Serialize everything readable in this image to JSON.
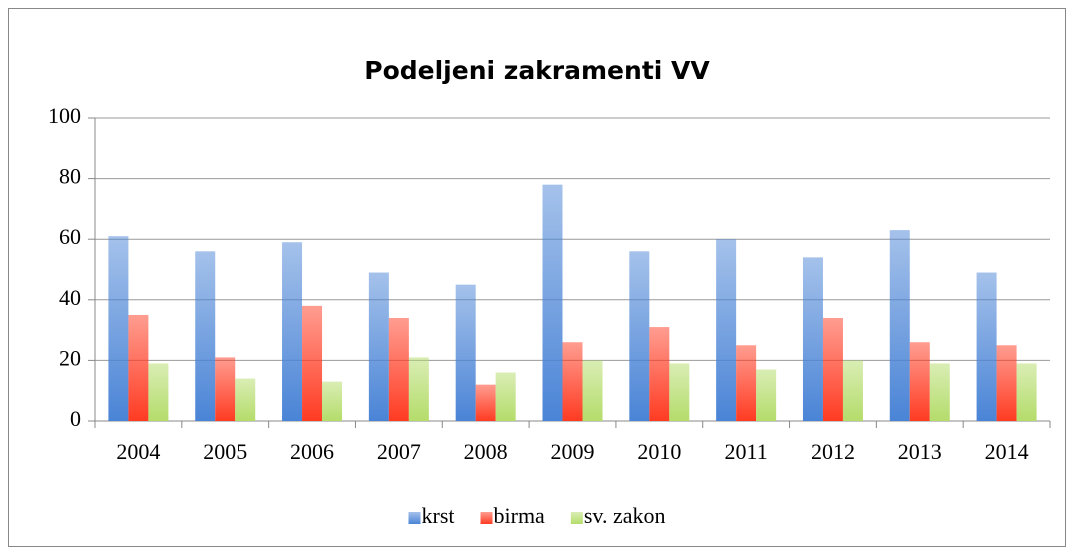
{
  "chart_data": {
    "type": "bar",
    "title": "Podeljeni zakramenti VV",
    "categories": [
      "2004",
      "2005",
      "2006",
      "2007",
      "2008",
      "2009",
      "2010",
      "2011",
      "2012",
      "2013",
      "2014"
    ],
    "series": [
      {
        "name": "krst",
        "color": "#4a84d6",
        "values": [
          61,
          56,
          59,
          49,
          45,
          78,
          56,
          60,
          54,
          63,
          49
        ]
      },
      {
        "name": "birma",
        "color": "#ff3b22",
        "values": [
          35,
          21,
          38,
          34,
          12,
          26,
          31,
          25,
          34,
          26,
          25
        ]
      },
      {
        "name": "sv. zakon",
        "color": "#b4dc6a",
        "values": [
          19,
          14,
          13,
          21,
          16,
          20,
          19,
          17,
          20,
          19,
          19
        ]
      }
    ],
    "ylim": [
      0,
      100
    ],
    "yticks": [
      0,
      20,
      40,
      60,
      80,
      100
    ],
    "grid": true,
    "legend": "bottom"
  }
}
